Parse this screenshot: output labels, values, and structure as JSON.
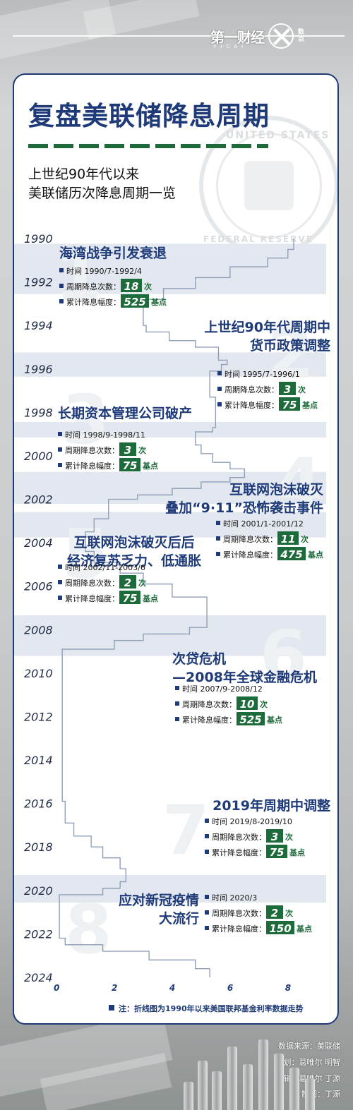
{
  "brand": {
    "name": "第一财经",
    "sub": "YICAI",
    "logo_text_1": "数",
    "logo_text_2": "点",
    "logo_text_0": "数"
  },
  "card": {
    "title": "复盘美联储降息周期",
    "subtitle_1": "上世纪90年代以来",
    "subtitle_2": "美联储历次降息周期一览",
    "seal_top": "UNITED STATES",
    "seal_bottom": "FEDERAL RESERVE SYSTEM"
  },
  "legend_note": "注：折线图为1990年以来美国联邦基金利率数据走势",
  "footer": {
    "source": "数据来源：美联储",
    "planning": "策划：葛唯尔 明智",
    "editor": "编辑：葛唯尔 丁源",
    "design": "制图：丁源"
  },
  "labels": {
    "time": "时间 ",
    "count": "周期降息次数：",
    "cut": "累计降息幅度：",
    "count_unit": "次",
    "cut_unit": "基点"
  },
  "colors": {
    "navy": "#1e3a78",
    "green": "#1d6b3a",
    "band": "#e3e8f0",
    "line": "#8f9fb8"
  },
  "chart_data": {
    "type": "line",
    "title": "",
    "xlabel": "",
    "ylabel": "",
    "orientation": "vertical-time",
    "xlim": [
      0,
      9
    ],
    "x_ticks": [
      0,
      2,
      4,
      6,
      8
    ],
    "ylim": [
      1990,
      2024
    ],
    "y_ticks": [
      1990,
      1992,
      1994,
      1996,
      1998,
      2000,
      2002,
      2004,
      2006,
      2008,
      2010,
      2012,
      2014,
      2016,
      2018,
      2020,
      2022,
      2024
    ],
    "series": [
      {
        "name": "",
        "points": [
          [
            1990.0,
            8.2
          ],
          [
            1990.5,
            8.0
          ],
          [
            1990.9,
            7.3
          ],
          [
            1991.3,
            6.0
          ],
          [
            1991.8,
            4.8
          ],
          [
            1992.3,
            3.7
          ],
          [
            1992.8,
            3.0
          ],
          [
            1993.5,
            3.0
          ],
          [
            1994.0,
            3.1
          ],
          [
            1994.3,
            3.9
          ],
          [
            1994.7,
            4.8
          ],
          [
            1995.0,
            5.6
          ],
          [
            1995.6,
            5.9
          ],
          [
            1995.8,
            5.7
          ],
          [
            1996.1,
            5.3
          ],
          [
            1997.3,
            5.5
          ],
          [
            1998.7,
            5.4
          ],
          [
            1998.9,
            4.8
          ],
          [
            1999.5,
            5.0
          ],
          [
            1999.9,
            5.4
          ],
          [
            2000.3,
            6.0
          ],
          [
            2000.6,
            6.5
          ],
          [
            2001.0,
            6.0
          ],
          [
            2001.2,
            5.0
          ],
          [
            2001.5,
            4.0
          ],
          [
            2001.8,
            2.8
          ],
          [
            2002.0,
            1.8
          ],
          [
            2002.9,
            1.3
          ],
          [
            2003.5,
            1.0
          ],
          [
            2004.4,
            1.3
          ],
          [
            2004.9,
            2.2
          ],
          [
            2005.4,
            3.0
          ],
          [
            2005.9,
            4.0
          ],
          [
            2006.5,
            5.2
          ],
          [
            2007.6,
            5.2
          ],
          [
            2007.9,
            4.6
          ],
          [
            2008.2,
            3.0
          ],
          [
            2008.5,
            2.0
          ],
          [
            2008.9,
            0.2
          ],
          [
            2015.9,
            0.3
          ],
          [
            2016.9,
            0.6
          ],
          [
            2017.5,
            1.2
          ],
          [
            2018.0,
            1.6
          ],
          [
            2018.5,
            2.2
          ],
          [
            2019.0,
            2.4
          ],
          [
            2019.6,
            2.2
          ],
          [
            2019.9,
            1.6
          ],
          [
            2020.2,
            0.1
          ],
          [
            2022.2,
            0.3
          ],
          [
            2022.5,
            1.6
          ],
          [
            2022.8,
            3.2
          ],
          [
            2023.2,
            4.8
          ],
          [
            2023.6,
            5.3
          ],
          [
            2024.0,
            5.3
          ]
        ]
      }
    ],
    "cycles": [
      {
        "id": "1",
        "title_lines": [
          "海湾战争引发衰退"
        ],
        "period": "1990/7-1992/4",
        "count": "18",
        "bps": "525",
        "y_start": 1990.5,
        "y_end": 1992.3
      },
      {
        "id": "2",
        "title_lines": [
          "上世纪90年代周期中",
          "货币政策调整"
        ],
        "period": "1995/7-1996/1",
        "count": "3",
        "bps": "75",
        "y_start": 1995.5,
        "y_end": 1996.1
      },
      {
        "id": "3",
        "title_lines": [
          "长期资本管理公司破产"
        ],
        "period": "1998/9-1998/11",
        "count": "3",
        "bps": "75",
        "y_start": 1998.7,
        "y_end": 1998.9
      },
      {
        "id": "4",
        "title_lines": [
          "互联网泡沫破灭",
          "叠加“9·11”恐怖袭击事件"
        ],
        "period": "2001/1-2001/12",
        "count": "11",
        "bps": "475",
        "y_start": 2001.0,
        "y_end": 2001.95
      },
      {
        "id": "5",
        "title_lines": [
          "互联网泡沫破灭后后",
          "经济复苏乏力、低通胀"
        ],
        "period": "2002/11-2003/6",
        "count": "2",
        "bps": "75",
        "y_start": 2002.85,
        "y_end": 2003.5
      },
      {
        "id": "6",
        "title_lines": [
          "次贷危机",
          "—2008年全球金融危机"
        ],
        "period": "2007/9-2008/12",
        "count": "10",
        "bps": "525",
        "y_start": 2007.6,
        "y_end": 2008.95
      },
      {
        "id": "7",
        "title_lines": [
          "2019年周期中调整"
        ],
        "period": "2019/8-2019/10",
        "count": "3",
        "bps": "75",
        "y_start": 2019.55,
        "y_end": 2019.85
      },
      {
        "id": "8",
        "title_lines": [
          "应对新冠疫情",
          "大流行"
        ],
        "period": "2020/3",
        "count": "2",
        "bps": "150",
        "y_start": 2020.15,
        "y_end": 2020.3
      }
    ]
  }
}
